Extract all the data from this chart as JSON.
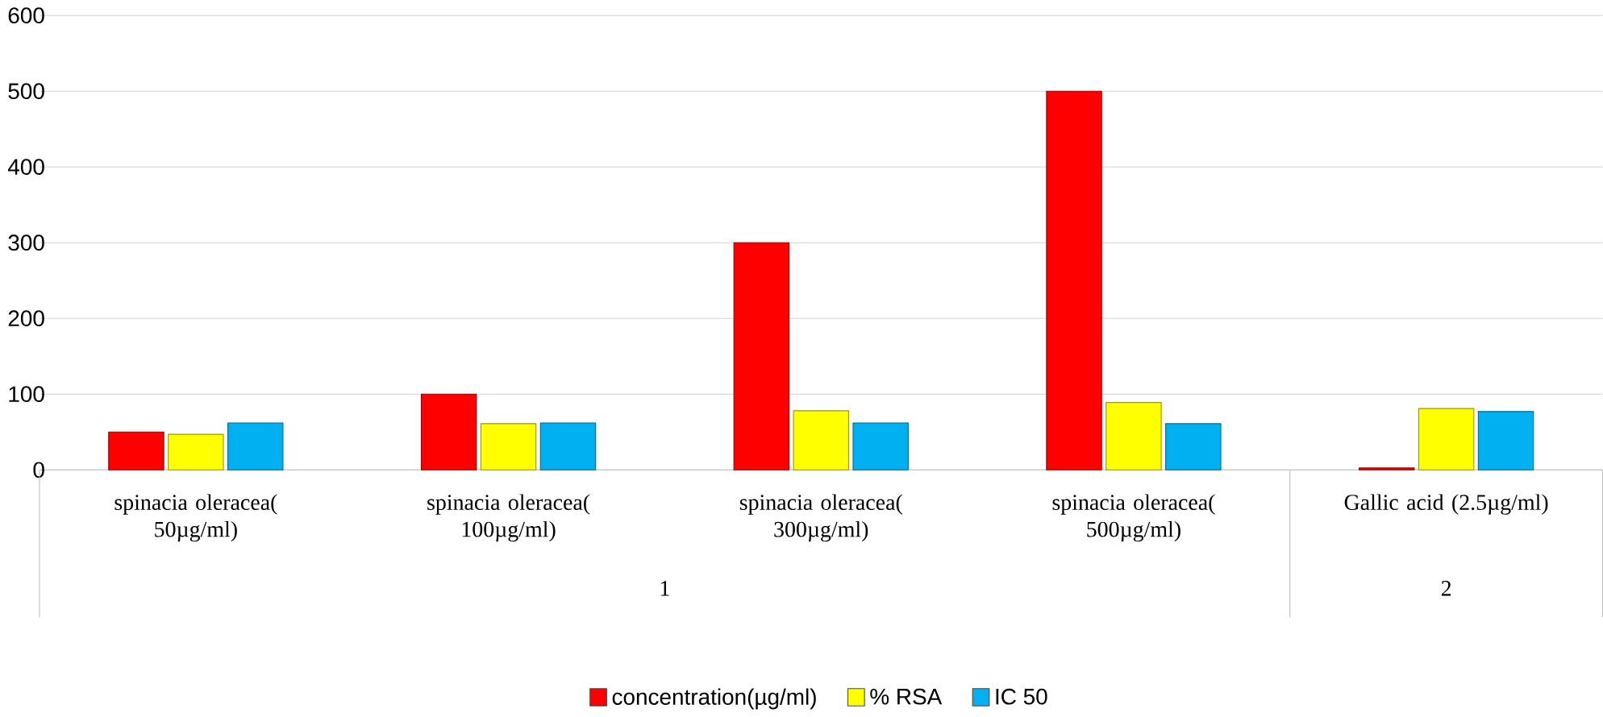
{
  "chart_data": {
    "type": "bar",
    "categories": [
      "spinacia oleracea( 50µg/ml)",
      "spinacia oleracea( 100µg/ml)",
      "spinacia oleracea( 300µg/ml)",
      "spinacia oleracea( 500µg/ml)",
      "Gallic acid (2.5µg/ml)"
    ],
    "series": [
      {
        "name": "concentration(µg/ml)",
        "color": "#ff0000",
        "values": [
          50,
          100,
          300,
          500,
          2.5
        ]
      },
      {
        "name": "% RSA",
        "color": "#ffff00",
        "values": [
          47,
          61,
          78,
          89,
          81
        ]
      },
      {
        "name": "IC 50",
        "color": "#00b0f0",
        "values": [
          62,
          62,
          62,
          61,
          77
        ]
      }
    ],
    "annotations": [
      "1",
      "2"
    ],
    "ylim": [
      0,
      600
    ],
    "yticks": [
      0,
      100,
      200,
      300,
      400,
      500,
      600
    ],
    "grid": "y",
    "legend": "bottom"
  }
}
